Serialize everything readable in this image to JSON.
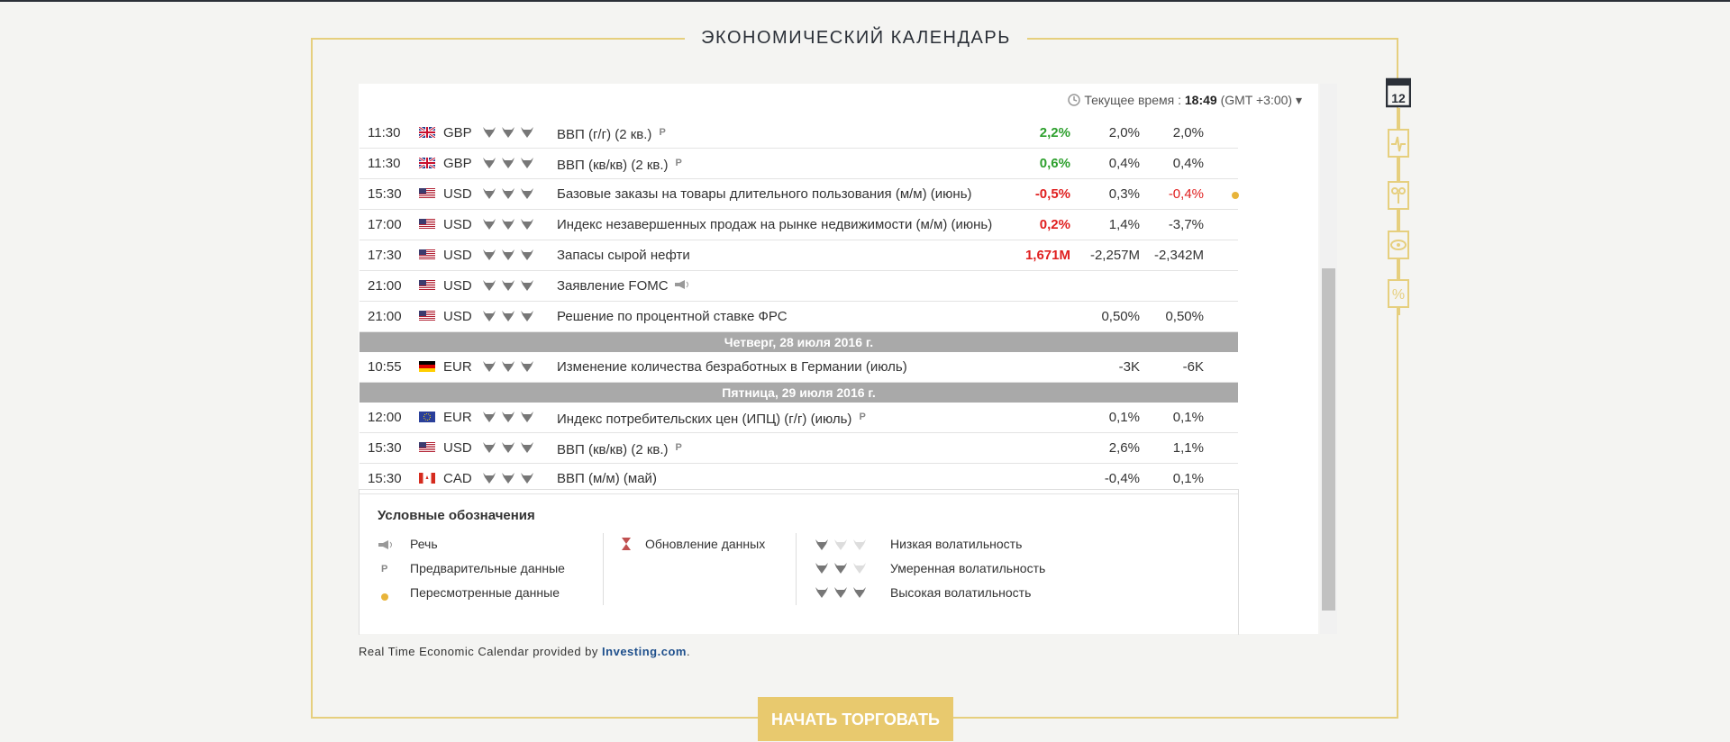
{
  "header": {
    "title": "ЭКОНОМИЧЕСКИЙ КАЛЕНДАРЬ"
  },
  "widget": {
    "current_time_label": "Текущее время :",
    "current_time": "18:49",
    "timezone": "(GMT +3:00)"
  },
  "table": {
    "rows": [
      {
        "time": "11:30",
        "flag": "gb",
        "currency": "GBP",
        "volatility": 3,
        "event": "ВВП (г/г) (2 кв.)",
        "preliminary": true,
        "actual": "2,2%",
        "actual_color": "#2ea02e",
        "forecast": "2,0%",
        "previous": "2,0%"
      },
      {
        "time": "11:30",
        "flag": "gb",
        "currency": "GBP",
        "volatility": 3,
        "event": "ВВП (кв/кв) (2 кв.)",
        "preliminary": true,
        "actual": "0,6%",
        "actual_color": "#2ea02e",
        "forecast": "0,4%",
        "previous": "0,4%"
      },
      {
        "time": "15:30",
        "flag": "us",
        "currency": "USD",
        "volatility": 3,
        "event": "Базовые заказы на товары длительного пользования (м/м) (июнь)",
        "actual": "-0,5%",
        "actual_color": "#e02020",
        "forecast": "0,3%",
        "previous": "-0,4%",
        "previous_color": "#e02020",
        "revised": true
      },
      {
        "time": "17:00",
        "flag": "us",
        "currency": "USD",
        "volatility": 3,
        "event": "Индекс незавершенных продаж на рынке недвижимости (м/м) (июнь)",
        "actual": "0,2%",
        "actual_color": "#e02020",
        "forecast": "1,4%",
        "previous": "-3,7%"
      },
      {
        "time": "17:30",
        "flag": "us",
        "currency": "USD",
        "volatility": 3,
        "event": "Запасы сырой нефти",
        "actual": "1,671M",
        "actual_color": "#e02020",
        "forecast": "-2,257M",
        "previous": "-2,342M"
      },
      {
        "time": "21:00",
        "flag": "us",
        "currency": "USD",
        "volatility": 3,
        "event": "Заявление FOMC",
        "speech": true
      },
      {
        "time": "21:00",
        "flag": "us",
        "currency": "USD",
        "volatility": 3,
        "event": "Решение по процентной ставке ФРС",
        "forecast": "0,50%",
        "previous": "0,50%"
      },
      {
        "date": "Четверг, 28 июля 2016 г."
      },
      {
        "time": "10:55",
        "flag": "de",
        "currency": "EUR",
        "volatility": 3,
        "event": "Изменение количества безработных в Германии (июль)",
        "forecast": "-3K",
        "previous": "-6K"
      },
      {
        "date": "Пятница, 29 июля 2016 г."
      },
      {
        "time": "12:00",
        "flag": "eu",
        "currency": "EUR",
        "volatility": 3,
        "event": "Индекс потребительских цен (ИПЦ) (г/г) (июль)",
        "preliminary": true,
        "forecast": "0,1%",
        "previous": "0,1%"
      },
      {
        "time": "15:30",
        "flag": "us",
        "currency": "USD",
        "volatility": 3,
        "event": "ВВП (кв/кв) (2 кв.)",
        "preliminary": true,
        "forecast": "2,6%",
        "previous": "1,1%"
      },
      {
        "time": "15:30",
        "flag": "ca",
        "currency": "CAD",
        "volatility": 3,
        "event": "ВВП (м/м) (май)",
        "forecast": "-0,4%",
        "previous": "0,1%"
      }
    ]
  },
  "legend": {
    "title": "Условные обозначения",
    "speech": "Речь",
    "preliminary": "Предварительные данные",
    "revised": "Пересмотренные данные",
    "update": "Обновление данных",
    "low": "Низкая волатильность",
    "moderate": "Умеренная волатильность",
    "high": "Высокая волатильность"
  },
  "footer": {
    "credit": "Real Time Economic Calendar provided by",
    "link": "Investing.com",
    "period": "."
  },
  "button": {
    "label": "НАЧАТЬ ТОРГОВАТЬ"
  }
}
